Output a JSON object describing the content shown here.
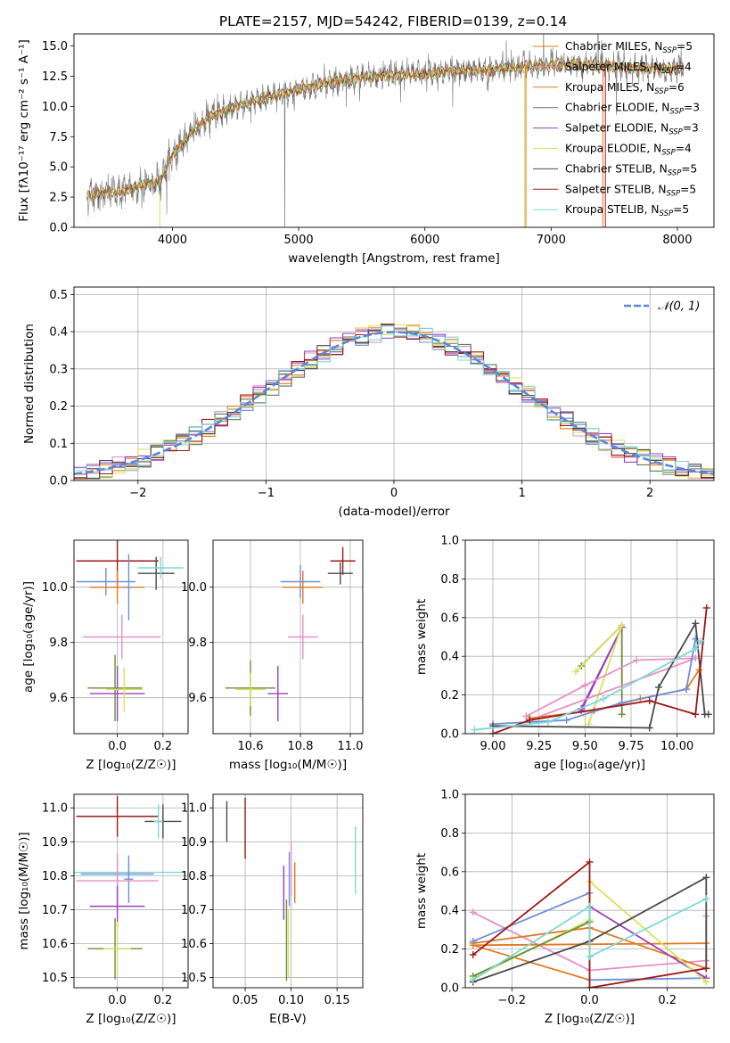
{
  "colors": {
    "orange": "#e07b1f",
    "pink": "#e88fc3",
    "blue": "#6f8fd8",
    "olive": "#6a8f3a",
    "green": "#5a7a5a",
    "purple": "#9a3fc0",
    "yellow": "#d9e15a",
    "darkgray": "#4a4a4a",
    "darkred": "#a01818",
    "cyan": "#7fd7d7",
    "data": "#777777",
    "gauss": "#5b87d4"
  },
  "chart_data": [
    {
      "id": "spectrum",
      "type": "line",
      "title": "PLATE=2157, MJD=54242, FIBERID=0139, z=0.14",
      "xlabel": "wavelength [Angstrom, rest frame]",
      "ylabel": "Flux [fλ10⁻¹⁷ erg cm⁻² s⁻¹ A⁻¹]",
      "xlim": [
        3220,
        8290
      ],
      "ylim": [
        0,
        16
      ],
      "xticks": [
        "4000",
        "5000",
        "6000",
        "7000",
        "8000"
      ],
      "yticks": [
        "0.0",
        "2.5",
        "5.0",
        "7.5",
        "10.0",
        "12.5",
        "15.0"
      ],
      "continuum_x": [
        3320,
        3600,
        3900,
        4000,
        4100,
        4200,
        4300,
        4500,
        4700,
        4900,
        5000,
        5200,
        5500,
        5800,
        6000,
        6200,
        6500,
        6800,
        7000,
        7200,
        7500,
        7900,
        8050
      ],
      "continuum_y": [
        2.7,
        3.0,
        3.8,
        6.0,
        7.2,
        8.3,
        9.2,
        10.0,
        10.6,
        11.1,
        11.4,
        11.9,
        12.4,
        12.6,
        12.7,
        12.9,
        13.0,
        13.3,
        13.4,
        13.5,
        13.3,
        13.1,
        13.2
      ],
      "legend": [
        {
          "label": "Chabrier MILES, N",
          "sub": "SSP",
          "tail": "=5",
          "color": "orange"
        },
        {
          "label": "Salpeter MILES, N",
          "sub": "SSP",
          "tail": "=4",
          "color": "pink"
        },
        {
          "label": "Kroupa MILES, N",
          "sub": "SSP",
          "tail": "=6",
          "color": "orange"
        },
        {
          "label": "Chabrier ELODIE, N",
          "sub": "SSP",
          "tail": "=3",
          "color": "green"
        },
        {
          "label": "Salpeter ELODIE, N",
          "sub": "SSP",
          "tail": "=3",
          "color": "purple"
        },
        {
          "label": "Kroupa ELODIE, N",
          "sub": "SSP",
          "tail": "=4",
          "color": "yellow"
        },
        {
          "label": "Chabrier STELIB, N",
          "sub": "SSP",
          "tail": "=5",
          "color": "darkgray"
        },
        {
          "label": "Salpeter STELIB, N",
          "sub": "SSP",
          "tail": "=5",
          "color": "darkred"
        },
        {
          "label": "Kroupa STELIB, N",
          "sub": "SSP",
          "tail": "=5",
          "color": "cyan"
        }
      ]
    },
    {
      "id": "residuals",
      "type": "histogram",
      "xlabel": "(data-model)/error",
      "ylabel": "Normed distribution",
      "xlim": [
        -2.5,
        2.5
      ],
      "ylim": [
        0,
        0.52
      ],
      "xticks": [
        "−2",
        "−1",
        "0",
        "1",
        "2"
      ],
      "yticks": [
        "0.0",
        "0.1",
        "0.2",
        "0.3",
        "0.4",
        "0.5"
      ],
      "legend": "𝒩(0, 1)",
      "bin_width": 0.1
    },
    {
      "id": "age_vs_z",
      "type": "errorbar",
      "xlabel": "Z [log₁₀(Z/Z☉)]",
      "ylabel": "age  [log₁₀(age/yr)]",
      "xlim": [
        -0.19,
        0.31
      ],
      "ylim": [
        9.47,
        10.17
      ],
      "xticks": [
        "0.0",
        "0.2"
      ],
      "yticks": [
        "9.6",
        "9.8",
        "10.0"
      ],
      "points": [
        {
          "x": 0.0,
          "y": 10.095,
          "xe": 0.18,
          "ye": 0.1,
          "c": "darkred"
        },
        {
          "x": 0.17,
          "y": 10.05,
          "xe": 0.08,
          "ye": 0.06,
          "c": "darkgray"
        },
        {
          "x": 0.19,
          "y": 10.07,
          "xe": 0.1,
          "ye": 0.04,
          "c": "cyan"
        },
        {
          "x": -0.05,
          "y": 10.02,
          "xe": 0.13,
          "ye": 0.05,
          "c": "blue"
        },
        {
          "x": 0.0,
          "y": 10.0,
          "xe": 0.12,
          "ye": 0.06,
          "c": "orange"
        },
        {
          "x": 0.05,
          "y": 10.0,
          "xe": 0.02,
          "ye": 0.12,
          "c": "blue"
        },
        {
          "x": 0.02,
          "y": 9.82,
          "xe": 0.17,
          "ye": 0.08,
          "c": "pink"
        },
        {
          "x": -0.01,
          "y": 9.635,
          "xe": 0.12,
          "ye": 0.12,
          "c": "olive"
        },
        {
          "x": 0.0,
          "y": 9.615,
          "xe": 0.12,
          "ye": 0.1,
          "c": "purple"
        },
        {
          "x": 0.03,
          "y": 9.63,
          "xe": 0.08,
          "ye": 0.08,
          "c": "yellow"
        }
      ]
    },
    {
      "id": "age_vs_mass",
      "type": "errorbar",
      "xlabel": "mass [log₁₀(M/M☉)]",
      "ylabel": "",
      "xlim": [
        10.45,
        11.05
      ],
      "ylim": [
        9.47,
        10.17
      ],
      "xticks": [
        "10.6",
        "10.8",
        "11.0"
      ],
      "yticks": [
        "9.6",
        "9.8",
        "10.0"
      ],
      "points": [
        {
          "x": 10.97,
          "y": 10.095,
          "xe": 0.05,
          "ye": 0.05,
          "c": "darkred"
        },
        {
          "x": 10.96,
          "y": 10.05,
          "xe": 0.05,
          "ye": 0.04,
          "c": "darkgray"
        },
        {
          "x": 10.8,
          "y": 10.02,
          "xe": 0.08,
          "ye": 0.06,
          "c": "blue"
        },
        {
          "x": 10.81,
          "y": 10.0,
          "xe": 0.08,
          "ye": 0.06,
          "c": "orange"
        },
        {
          "x": 10.81,
          "y": 9.82,
          "xe": 0.06,
          "ye": 0.08,
          "c": "pink"
        },
        {
          "x": 10.6,
          "y": 9.635,
          "xe": 0.1,
          "ye": 0.1,
          "c": "olive"
        },
        {
          "x": 10.71,
          "y": 9.615,
          "xe": 0.04,
          "ye": 0.1,
          "c": "purple"
        },
        {
          "x": 10.6,
          "y": 9.63,
          "xe": 0.06,
          "ye": 0.06,
          "c": "yellow"
        }
      ]
    },
    {
      "id": "mw_vs_age",
      "type": "line",
      "xlabel": "age  [log₁₀(age/yr)]",
      "ylabel": "mass weight",
      "xlim": [
        8.85,
        10.2
      ],
      "ylim": [
        0,
        1.0
      ],
      "xticks": [
        "9.00",
        "9.25",
        "9.50",
        "9.75",
        "10.00"
      ],
      "yticks": [
        "0.0",
        "0.2",
        "0.4",
        "0.6",
        "0.8",
        "1.0"
      ],
      "series": [
        {
          "c": "olive",
          "x": [
            9.48,
            9.7,
            9.7
          ],
          "y": [
            0.35,
            0.56,
            0.1
          ]
        },
        {
          "c": "purple",
          "x": [
            9.48,
            9.7,
            9.48
          ],
          "y": [
            0.12,
            0.55,
            0.13
          ]
        },
        {
          "c": "yellow",
          "x": [
            9.45,
            9.7,
            9.52
          ],
          "y": [
            0.32,
            0.56,
            0.05
          ]
        },
        {
          "c": "pink",
          "x": [
            9.18,
            9.5,
            9.78,
            10.1,
            9.2
          ],
          "y": [
            0.09,
            0.25,
            0.38,
            0.39,
            0.07
          ]
        },
        {
          "c": "orange",
          "x": [
            9.2,
            9.55,
            9.8,
            10.05,
            10.12
          ],
          "y": [
            0.08,
            0.12,
            0.18,
            0.23,
            0.33
          ]
        },
        {
          "c": "blue",
          "x": [
            9.0,
            9.4,
            9.7,
            10.05,
            10.1
          ],
          "y": [
            0.05,
            0.07,
            0.16,
            0.23,
            0.49
          ]
        },
        {
          "c": "darkgray",
          "x": [
            9.0,
            9.85,
            9.9,
            10.1,
            10.15,
            10.17
          ],
          "y": [
            0.04,
            0.03,
            0.24,
            0.57,
            0.1,
            0.1
          ]
        },
        {
          "c": "darkred",
          "x": [
            9.0,
            9.2,
            9.85,
            10.1,
            10.16
          ],
          "y": [
            0.0,
            0.07,
            0.17,
            0.1,
            0.65
          ]
        },
        {
          "c": "cyan",
          "x": [
            8.9,
            9.3,
            9.6,
            10.1,
            10.13
          ],
          "y": [
            0.02,
            0.06,
            0.18,
            0.44,
            0.48
          ]
        }
      ]
    },
    {
      "id": "mass_vs_z",
      "type": "errorbar",
      "xlabel": "Z [log₁₀(Z/Z☉)]",
      "ylabel": "mass [log₁₀(M/M☉)]",
      "xlim": [
        -0.19,
        0.31
      ],
      "ylim": [
        10.47,
        11.04
      ],
      "xticks": [
        "0.0",
        "0.2"
      ],
      "yticks": [
        "10.5",
        "10.6",
        "10.7",
        "10.8",
        "10.9",
        "11.0"
      ],
      "points": [
        {
          "x": 0.0,
          "y": 10.975,
          "xe": 0.18,
          "ye": 0.06,
          "c": "darkred"
        },
        {
          "x": 0.2,
          "y": 10.96,
          "xe": 0.08,
          "ye": 0.05,
          "c": "darkgray"
        },
        {
          "x": 0.18,
          "y": 10.96,
          "xe": 0.02,
          "ye": 0.05,
          "c": "cyan"
        },
        {
          "x": 0.05,
          "y": 10.81,
          "xe": 0.24,
          "ye": 0.03,
          "c": "cyan"
        },
        {
          "x": 0.0,
          "y": 10.805,
          "xe": 0.16,
          "ye": 0.04,
          "c": "blue"
        },
        {
          "x": 0.05,
          "y": 10.79,
          "xe": 0.02,
          "ye": 0.07,
          "c": "blue"
        },
        {
          "x": 0.0,
          "y": 10.785,
          "xe": 0.18,
          "ye": 0.08,
          "c": "pink"
        },
        {
          "x": 0.0,
          "y": 10.71,
          "xe": 0.12,
          "ye": 0.06,
          "c": "purple"
        },
        {
          "x": -0.01,
          "y": 10.585,
          "xe": 0.12,
          "ye": 0.09,
          "c": "olive"
        },
        {
          "x": 0.0,
          "y": 10.585,
          "xe": 0.06,
          "ye": 0.08,
          "c": "yellow"
        }
      ]
    },
    {
      "id": "mass_vs_ebv",
      "type": "errorbar",
      "xlabel": "E(B-V)",
      "ylabel": "",
      "xlim": [
        0.015,
        0.178
      ],
      "ylim": [
        10.47,
        11.04
      ],
      "xticks": [
        "0.05",
        "0.10",
        "0.15"
      ],
      "yticks": [
        "10.5",
        "10.6",
        "10.7",
        "10.8",
        "10.9",
        "11.0"
      ],
      "points": [
        {
          "x": 0.03,
          "y": 10.96,
          "xe": 0,
          "ye": 0.06,
          "c": "darkgray"
        },
        {
          "x": 0.05,
          "y": 10.94,
          "xe": 0,
          "ye": 0.09,
          "c": "darkred"
        },
        {
          "x": 0.1,
          "y": 10.82,
          "xe": 0,
          "ye": 0.08,
          "c": "pink"
        },
        {
          "x": 0.104,
          "y": 10.78,
          "xe": 0,
          "ye": 0.06,
          "c": "orange"
        },
        {
          "x": 0.098,
          "y": 10.79,
          "xe": 0,
          "ye": 0.08,
          "c": "blue"
        },
        {
          "x": 0.17,
          "y": 10.845,
          "xe": 0,
          "ye": 0.1,
          "c": "cyan"
        },
        {
          "x": 0.092,
          "y": 10.75,
          "xe": 0,
          "ye": 0.08,
          "c": "purple"
        },
        {
          "x": 0.095,
          "y": 10.61,
          "xe": 0,
          "ye": 0.12,
          "c": "olive"
        },
        {
          "x": 0.097,
          "y": 10.6,
          "xe": 0,
          "ye": 0.1,
          "c": "yellow"
        }
      ]
    },
    {
      "id": "mw_vs_z",
      "type": "line",
      "xlabel": "Z [log₁₀(Z/Z☉)]",
      "ylabel": "mass weight",
      "xlim": [
        -0.32,
        0.32
      ],
      "ylim": [
        0,
        1.0
      ],
      "xticks": [
        "−0.2",
        "0.0",
        "0.2"
      ],
      "yticks": [
        "0.0",
        "0.2",
        "0.4",
        "0.6",
        "0.8",
        "1.0"
      ],
      "series": [
        {
          "c": "pink",
          "x": [
            -0.3,
            0.0,
            0.3,
            0.3
          ],
          "y": [
            0.39,
            0.09,
            0.14,
            0.37
          ]
        },
        {
          "c": "orange",
          "x": [
            -0.3,
            0.0,
            0.3,
            0.3,
            -0.3,
            0.0
          ],
          "y": [
            0.23,
            0.31,
            0.1,
            0.23,
            0.22,
            0.04
          ]
        },
        {
          "c": "blue",
          "x": [
            -0.3,
            0.0,
            0.0,
            0.3
          ],
          "y": [
            0.24,
            0.49,
            0.04,
            0.05
          ]
        },
        {
          "c": "purple",
          "x": [
            0.0,
            0.3
          ],
          "y": [
            0.42,
            0.05
          ]
        },
        {
          "c": "yellow",
          "x": [
            -0.3,
            0.0,
            0.0,
            0.3
          ],
          "y": [
            0.05,
            0.35,
            0.55,
            0.03
          ]
        },
        {
          "c": "olive",
          "x": [
            -0.3,
            0.0
          ],
          "y": [
            0.06,
            0.34
          ]
        },
        {
          "c": "darkgray",
          "x": [
            -0.3,
            0.0,
            0.3,
            0.3
          ],
          "y": [
            0.03,
            0.24,
            0.57,
            0.1
          ]
        },
        {
          "c": "darkred",
          "x": [
            -0.3,
            0.0,
            0.0,
            0.3,
            0.3
          ],
          "y": [
            0.17,
            0.65,
            0.0,
            0.1,
            0.1
          ]
        },
        {
          "c": "cyan",
          "x": [
            -0.3,
            0.0,
            0.0,
            0.3
          ],
          "y": [
            0.04,
            0.42,
            0.16,
            0.46
          ]
        }
      ]
    }
  ]
}
